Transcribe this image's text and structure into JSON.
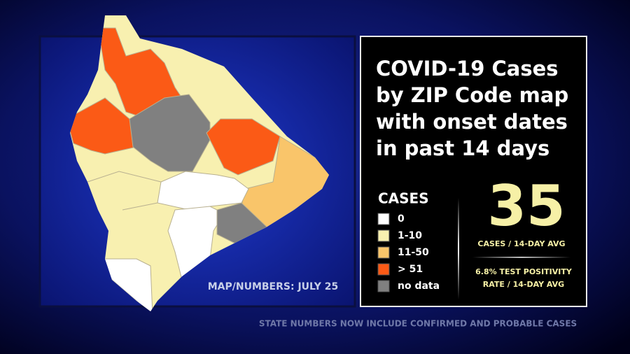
{
  "title_lines": [
    "COVID-19 Cases",
    "by ZIP Code map",
    "with onset dates",
    "in past 14 days"
  ],
  "legend": {
    "title": "CASES",
    "items": [
      {
        "label": "0",
        "color": "#ffffff"
      },
      {
        "label": "1-10",
        "color": "#f8f0b0"
      },
      {
        "label": "11-50",
        "color": "#f9c56a"
      },
      {
        "label": "> 51",
        "color": "#fb5a16"
      },
      {
        "label": "no data",
        "color": "#808080"
      }
    ]
  },
  "stats": {
    "cases_avg": 35,
    "cases_avg_label": "CASES / 14-DAY AVG",
    "positivity_lines": [
      "6.8% TEST POSITIVITY",
      "RATE / 14-DAY AVG"
    ]
  },
  "map_credit": "MAP/NUMBERS: JULY 25",
  "footer": "STATE NUMBERS NOW INCLUDE CONFIRMED AND PROBABLE CASES"
}
